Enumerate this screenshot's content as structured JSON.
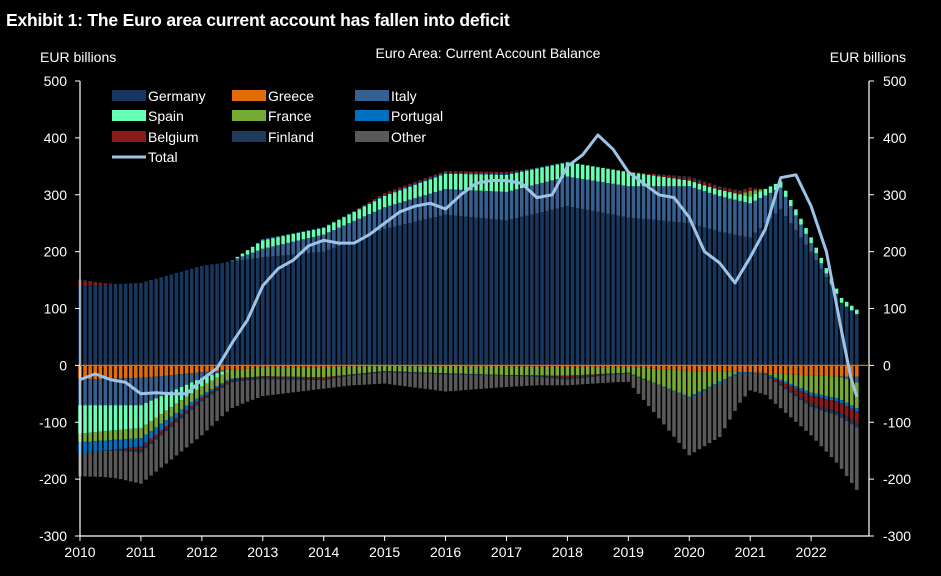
{
  "exhibit": {
    "title": "Exhibit 1: The Euro area current account has fallen into deficit"
  },
  "chart_data": {
    "type": "bar",
    "stacked": true,
    "title": "Euro Area: Current  Account Balance",
    "ylabel_left": "EUR billions",
    "ylabel_right": "EUR billions",
    "ylim": [
      -300,
      500
    ],
    "yticks": [
      500,
      400,
      300,
      200,
      100,
      0,
      -100,
      -200,
      -300
    ],
    "xlim": [
      2010.0,
      2022.95
    ],
    "xticks": [
      "2010",
      "2011",
      "2012",
      "2013",
      "2014",
      "2015",
      "2016",
      "2017",
      "2018",
      "2019",
      "2020",
      "2021",
      "2022"
    ],
    "legend_position": "top-left",
    "series": [
      {
        "name": "Germany",
        "color": "#17375e",
        "points": [
          [
            2010.0,
            140
          ],
          [
            2011.0,
            145
          ],
          [
            2012.0,
            175
          ],
          [
            2013.0,
            190
          ],
          [
            2014.0,
            200
          ],
          [
            2015.0,
            240
          ],
          [
            2016.0,
            265
          ],
          [
            2017.0,
            255
          ],
          [
            2018.0,
            280
          ],
          [
            2019.0,
            260
          ],
          [
            2020.0,
            250
          ],
          [
            2020.5,
            235
          ],
          [
            2021.0,
            225
          ],
          [
            2021.5,
            275
          ],
          [
            2022.0,
            200
          ],
          [
            2022.5,
            110
          ],
          [
            2022.75,
            90
          ]
        ]
      },
      {
        "name": "Greece",
        "color": "#e36c09",
        "points": [
          [
            2010.0,
            -25
          ],
          [
            2011.0,
            -22
          ],
          [
            2012.0,
            -12
          ],
          [
            2013.0,
            -4
          ],
          [
            2014.0,
            -3
          ],
          [
            2015.0,
            -1
          ],
          [
            2016.0,
            -2
          ],
          [
            2017.0,
            -2
          ],
          [
            2018.0,
            -3
          ],
          [
            2019.0,
            -3
          ],
          [
            2020.0,
            -10
          ],
          [
            2021.0,
            -12
          ],
          [
            2022.0,
            -18
          ],
          [
            2022.75,
            -20
          ]
        ]
      },
      {
        "name": "Italy",
        "color": "#366092",
        "points": [
          [
            2010.0,
            -45
          ],
          [
            2011.0,
            -48
          ],
          [
            2012.0,
            -10
          ],
          [
            2013.0,
            15
          ],
          [
            2014.0,
            30
          ],
          [
            2015.0,
            38
          ],
          [
            2016.0,
            45
          ],
          [
            2017.0,
            50
          ],
          [
            2018.0,
            52
          ],
          [
            2019.0,
            55
          ],
          [
            2020.0,
            65
          ],
          [
            2021.0,
            60
          ],
          [
            2022.0,
            15
          ],
          [
            2022.75,
            -10
          ]
        ]
      },
      {
        "name": "Spain",
        "color": "#66ffb3",
        "points": [
          [
            2010.0,
            -50
          ],
          [
            2011.0,
            -40
          ],
          [
            2012.0,
            -15
          ],
          [
            2013.0,
            15
          ],
          [
            2014.0,
            12
          ],
          [
            2015.0,
            20
          ],
          [
            2016.0,
            27
          ],
          [
            2017.0,
            30
          ],
          [
            2018.0,
            25
          ],
          [
            2019.0,
            25
          ],
          [
            2020.0,
            10
          ],
          [
            2021.0,
            12
          ],
          [
            2022.0,
            10
          ],
          [
            2022.75,
            8
          ]
        ]
      },
      {
        "name": "France",
        "color": "#77aa33",
        "points": [
          [
            2010.0,
            -15
          ],
          [
            2011.0,
            -18
          ],
          [
            2012.0,
            -15
          ],
          [
            2013.0,
            -15
          ],
          [
            2014.0,
            -18
          ],
          [
            2015.0,
            -9
          ],
          [
            2016.0,
            -12
          ],
          [
            2017.0,
            -15
          ],
          [
            2018.0,
            -15
          ],
          [
            2019.0,
            -10
          ],
          [
            2020.0,
            -45
          ],
          [
            2021.0,
            10
          ],
          [
            2022.0,
            -30
          ],
          [
            2022.75,
            -45
          ]
        ]
      },
      {
        "name": "Portugal",
        "color": "#0070c0",
        "points": [
          [
            2010.0,
            -20
          ],
          [
            2011.0,
            -15
          ],
          [
            2012.0,
            -5
          ],
          [
            2013.0,
            2
          ],
          [
            2014.0,
            1
          ],
          [
            2015.0,
            1
          ],
          [
            2016.0,
            2
          ],
          [
            2017.0,
            2
          ],
          [
            2018.0,
            1
          ],
          [
            2019.0,
            0
          ],
          [
            2020.0,
            -3
          ],
          [
            2021.0,
            -2
          ],
          [
            2022.0,
            -5
          ],
          [
            2022.75,
            -6
          ]
        ]
      },
      {
        "name": "Belgium",
        "color": "#8b1a1a",
        "points": [
          [
            2010.0,
            8
          ],
          [
            2011.0,
            -5
          ],
          [
            2012.0,
            -3
          ],
          [
            2013.0,
            -1
          ],
          [
            2014.0,
            -3
          ],
          [
            2015.0,
            4
          ],
          [
            2016.0,
            3
          ],
          [
            2017.0,
            3
          ],
          [
            2018.0,
            -3
          ],
          [
            2019.0,
            1
          ],
          [
            2020.0,
            5
          ],
          [
            2021.0,
            5
          ],
          [
            2022.0,
            -15
          ],
          [
            2022.75,
            -20
          ]
        ]
      },
      {
        "name": "Finland",
        "color": "#1f3a5a",
        "points": [
          [
            2010.0,
            3
          ],
          [
            2011.0,
            -5
          ],
          [
            2012.0,
            -3
          ],
          [
            2013.0,
            -4
          ],
          [
            2014.0,
            -2
          ],
          [
            2015.0,
            -2
          ],
          [
            2016.0,
            -2
          ],
          [
            2017.0,
            -1
          ],
          [
            2018.0,
            -4
          ],
          [
            2019.0,
            -1
          ],
          [
            2020.0,
            2
          ],
          [
            2021.0,
            1
          ],
          [
            2022.0,
            -5
          ],
          [
            2022.75,
            -8
          ]
        ]
      },
      {
        "name": "Other",
        "color": "#595959",
        "points": [
          [
            2010.0,
            -40
          ],
          [
            2011.0,
            -55
          ],
          [
            2012.0,
            -60
          ],
          [
            2013.0,
            -30
          ],
          [
            2014.0,
            -15
          ],
          [
            2015.0,
            -20
          ],
          [
            2016.0,
            -30
          ],
          [
            2017.0,
            -20
          ],
          [
            2018.0,
            -10
          ],
          [
            2019.0,
            -15
          ],
          [
            2020.0,
            -100
          ],
          [
            2020.5,
            -95
          ],
          [
            2021.0,
            -30
          ],
          [
            2022.0,
            -50
          ],
          [
            2022.75,
            -110
          ]
        ]
      }
    ],
    "total": {
      "name": "Total",
      "color": "#9dc3e6",
      "points": [
        [
          2010.0,
          -25
        ],
        [
          2010.25,
          -15
        ],
        [
          2010.5,
          -25
        ],
        [
          2010.75,
          -30
        ],
        [
          2011.0,
          -50
        ],
        [
          2011.25,
          -48
        ],
        [
          2011.5,
          -50
        ],
        [
          2011.75,
          -50
        ],
        [
          2012.0,
          -25
        ],
        [
          2012.25,
          -5
        ],
        [
          2012.5,
          40
        ],
        [
          2012.75,
          80
        ],
        [
          2013.0,
          140
        ],
        [
          2013.25,
          170
        ],
        [
          2013.5,
          185
        ],
        [
          2013.75,
          210
        ],
        [
          2014.0,
          220
        ],
        [
          2014.25,
          215
        ],
        [
          2014.5,
          215
        ],
        [
          2014.75,
          230
        ],
        [
          2015.0,
          250
        ],
        [
          2015.25,
          270
        ],
        [
          2015.5,
          280
        ],
        [
          2015.75,
          285
        ],
        [
          2016.0,
          275
        ],
        [
          2016.25,
          300
        ],
        [
          2016.5,
          320
        ],
        [
          2016.75,
          325
        ],
        [
          2017.0,
          325
        ],
        [
          2017.25,
          320
        ],
        [
          2017.5,
          295
        ],
        [
          2017.75,
          300
        ],
        [
          2018.0,
          350
        ],
        [
          2018.25,
          370
        ],
        [
          2018.5,
          405
        ],
        [
          2018.75,
          380
        ],
        [
          2019.0,
          340
        ],
        [
          2019.25,
          320
        ],
        [
          2019.5,
          300
        ],
        [
          2019.75,
          295
        ],
        [
          2020.0,
          260
        ],
        [
          2020.25,
          200
        ],
        [
          2020.5,
          180
        ],
        [
          2020.75,
          145
        ],
        [
          2021.0,
          190
        ],
        [
          2021.25,
          240
        ],
        [
          2021.5,
          330
        ],
        [
          2021.75,
          335
        ],
        [
          2022.0,
          280
        ],
        [
          2022.25,
          200
        ],
        [
          2022.5,
          60
        ],
        [
          2022.65,
          -20
        ],
        [
          2022.75,
          -55
        ]
      ]
    }
  }
}
